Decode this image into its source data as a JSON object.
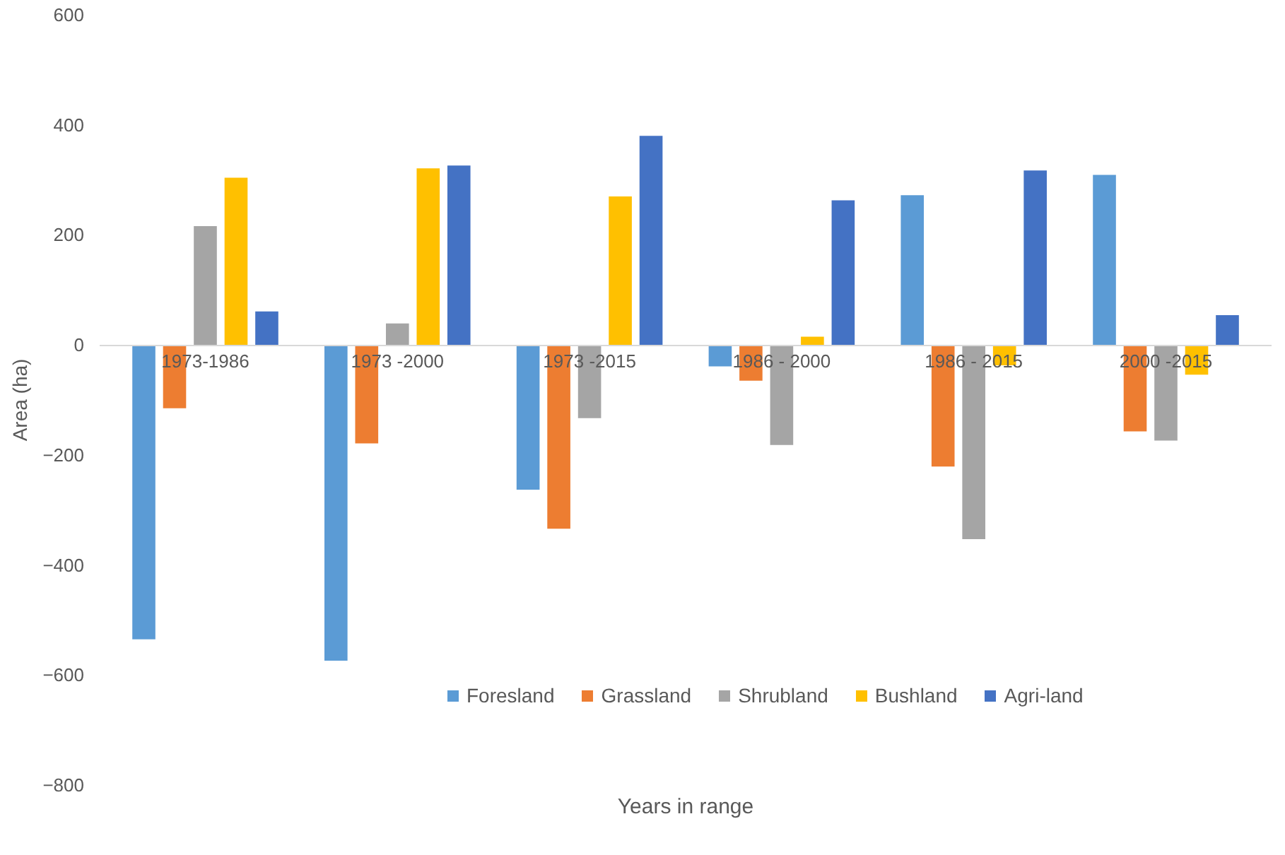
{
  "chart_data": {
    "type": "bar",
    "xlabel": "Years in range",
    "ylabel": "Area (ha)",
    "categories": [
      "1973-1986",
      "1973 -2000",
      "1973 -2015",
      "1986 - 2000",
      "1986 - 2015",
      "2000 -2015"
    ],
    "series": [
      {
        "name": "Foresland",
        "color": "#5b9bd5",
        "values": [
          -535,
          -574,
          -263,
          -39,
          272,
          309
        ]
      },
      {
        "name": "Grassland",
        "color": "#ed7d31",
        "values": [
          -115,
          -179,
          -334,
          -65,
          -221,
          -157
        ]
      },
      {
        "name": "Shrubland",
        "color": "#a5a5a5",
        "values": [
          216,
          39,
          -133,
          -182,
          -353,
          -174
        ]
      },
      {
        "name": "Bushland",
        "color": "#ffc000",
        "values": [
          304,
          321,
          270,
          15,
          -37,
          -54
        ]
      },
      {
        "name": "Agri-land",
        "color": "#4472c4",
        "values": [
          61,
          326,
          380,
          263,
          317,
          54
        ]
      }
    ],
    "ylim": [
      -800,
      600
    ],
    "yticks": [
      -800,
      -600,
      -400,
      -200,
      0,
      200,
      400,
      600
    ],
    "grid": false,
    "legend": "bottom"
  }
}
